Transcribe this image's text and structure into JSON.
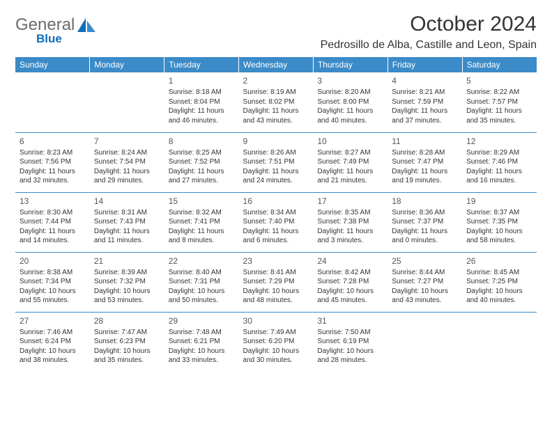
{
  "logo": {
    "text": "General",
    "sub": "Blue"
  },
  "title": "October 2024",
  "location": "Pedrosillo de Alba, Castille and Leon, Spain",
  "colors": {
    "header_bg": "#3b8bc8",
    "header_text": "#ffffff",
    "body_text": "#333333",
    "logo_gray": "#6b6b6b",
    "logo_blue": "#0f6db8",
    "border": "#3b8bc8",
    "background": "#ffffff"
  },
  "fonts": {
    "family": "Arial",
    "title_size": 30,
    "location_size": 16,
    "dayheader_size": 12,
    "cell_size": 10
  },
  "day_headers": [
    "Sunday",
    "Monday",
    "Tuesday",
    "Wednesday",
    "Thursday",
    "Friday",
    "Saturday"
  ],
  "weeks": [
    [
      null,
      null,
      {
        "n": "1",
        "sunrise": "8:18 AM",
        "sunset": "8:04 PM",
        "daylight": "11 hours and 46 minutes."
      },
      {
        "n": "2",
        "sunrise": "8:19 AM",
        "sunset": "8:02 PM",
        "daylight": "11 hours and 43 minutes."
      },
      {
        "n": "3",
        "sunrise": "8:20 AM",
        "sunset": "8:00 PM",
        "daylight": "11 hours and 40 minutes."
      },
      {
        "n": "4",
        "sunrise": "8:21 AM",
        "sunset": "7:59 PM",
        "daylight": "11 hours and 37 minutes."
      },
      {
        "n": "5",
        "sunrise": "8:22 AM",
        "sunset": "7:57 PM",
        "daylight": "11 hours and 35 minutes."
      }
    ],
    [
      {
        "n": "6",
        "sunrise": "8:23 AM",
        "sunset": "7:56 PM",
        "daylight": "11 hours and 32 minutes."
      },
      {
        "n": "7",
        "sunrise": "8:24 AM",
        "sunset": "7:54 PM",
        "daylight": "11 hours and 29 minutes."
      },
      {
        "n": "8",
        "sunrise": "8:25 AM",
        "sunset": "7:52 PM",
        "daylight": "11 hours and 27 minutes."
      },
      {
        "n": "9",
        "sunrise": "8:26 AM",
        "sunset": "7:51 PM",
        "daylight": "11 hours and 24 minutes."
      },
      {
        "n": "10",
        "sunrise": "8:27 AM",
        "sunset": "7:49 PM",
        "daylight": "11 hours and 21 minutes."
      },
      {
        "n": "11",
        "sunrise": "8:28 AM",
        "sunset": "7:47 PM",
        "daylight": "11 hours and 19 minutes."
      },
      {
        "n": "12",
        "sunrise": "8:29 AM",
        "sunset": "7:46 PM",
        "daylight": "11 hours and 16 minutes."
      }
    ],
    [
      {
        "n": "13",
        "sunrise": "8:30 AM",
        "sunset": "7:44 PM",
        "daylight": "11 hours and 14 minutes."
      },
      {
        "n": "14",
        "sunrise": "8:31 AM",
        "sunset": "7:43 PM",
        "daylight": "11 hours and 11 minutes."
      },
      {
        "n": "15",
        "sunrise": "8:32 AM",
        "sunset": "7:41 PM",
        "daylight": "11 hours and 8 minutes."
      },
      {
        "n": "16",
        "sunrise": "8:34 AM",
        "sunset": "7:40 PM",
        "daylight": "11 hours and 6 minutes."
      },
      {
        "n": "17",
        "sunrise": "8:35 AM",
        "sunset": "7:38 PM",
        "daylight": "11 hours and 3 minutes."
      },
      {
        "n": "18",
        "sunrise": "8:36 AM",
        "sunset": "7:37 PM",
        "daylight": "11 hours and 0 minutes."
      },
      {
        "n": "19",
        "sunrise": "8:37 AM",
        "sunset": "7:35 PM",
        "daylight": "10 hours and 58 minutes."
      }
    ],
    [
      {
        "n": "20",
        "sunrise": "8:38 AM",
        "sunset": "7:34 PM",
        "daylight": "10 hours and 55 minutes."
      },
      {
        "n": "21",
        "sunrise": "8:39 AM",
        "sunset": "7:32 PM",
        "daylight": "10 hours and 53 minutes."
      },
      {
        "n": "22",
        "sunrise": "8:40 AM",
        "sunset": "7:31 PM",
        "daylight": "10 hours and 50 minutes."
      },
      {
        "n": "23",
        "sunrise": "8:41 AM",
        "sunset": "7:29 PM",
        "daylight": "10 hours and 48 minutes."
      },
      {
        "n": "24",
        "sunrise": "8:42 AM",
        "sunset": "7:28 PM",
        "daylight": "10 hours and 45 minutes."
      },
      {
        "n": "25",
        "sunrise": "8:44 AM",
        "sunset": "7:27 PM",
        "daylight": "10 hours and 43 minutes."
      },
      {
        "n": "26",
        "sunrise": "8:45 AM",
        "sunset": "7:25 PM",
        "daylight": "10 hours and 40 minutes."
      }
    ],
    [
      {
        "n": "27",
        "sunrise": "7:46 AM",
        "sunset": "6:24 PM",
        "daylight": "10 hours and 38 minutes."
      },
      {
        "n": "28",
        "sunrise": "7:47 AM",
        "sunset": "6:23 PM",
        "daylight": "10 hours and 35 minutes."
      },
      {
        "n": "29",
        "sunrise": "7:48 AM",
        "sunset": "6:21 PM",
        "daylight": "10 hours and 33 minutes."
      },
      {
        "n": "30",
        "sunrise": "7:49 AM",
        "sunset": "6:20 PM",
        "daylight": "10 hours and 30 minutes."
      },
      {
        "n": "31",
        "sunrise": "7:50 AM",
        "sunset": "6:19 PM",
        "daylight": "10 hours and 28 minutes."
      },
      null,
      null
    ]
  ]
}
